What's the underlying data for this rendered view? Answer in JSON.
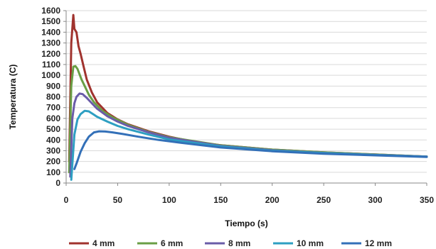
{
  "chart_data": {
    "type": "line",
    "xlabel": "Tiempo (s)",
    "ylabel": "Temperatura (C)",
    "xlim": [
      0,
      350
    ],
    "ylim": [
      0,
      1600
    ],
    "xticks": [
      0,
      50,
      100,
      150,
      200,
      250,
      300,
      350
    ],
    "yticks": [
      0,
      100,
      200,
      300,
      400,
      500,
      600,
      700,
      800,
      900,
      1000,
      1100,
      1200,
      1300,
      1400,
      1500,
      1600
    ],
    "grid": "horizontal",
    "legend_position": "bottom",
    "series": [
      {
        "name": "4 mm",
        "color": "#A0332E",
        "x": [
          3,
          5,
          7,
          8,
          10,
          12,
          14,
          17,
          20,
          25,
          30,
          40,
          50,
          60,
          80,
          100,
          125,
          150,
          200,
          250,
          300,
          350
        ],
        "y": [
          200,
          1300,
          1560,
          1430,
          1400,
          1270,
          1200,
          1080,
          960,
          840,
          750,
          650,
          590,
          545,
          480,
          430,
          380,
          350,
          310,
          285,
          265,
          245
        ]
      },
      {
        "name": "6 mm",
        "color": "#6A9E45",
        "x": [
          3,
          5,
          7,
          9,
          11,
          13,
          15,
          18,
          22,
          27,
          35,
          45,
          60,
          80,
          100,
          150,
          200,
          250,
          300,
          350
        ],
        "y": [
          100,
          900,
          1080,
          1085,
          1060,
          1010,
          960,
          900,
          820,
          750,
          670,
          610,
          540,
          475,
          425,
          350,
          310,
          285,
          265,
          245
        ]
      },
      {
        "name": "8 mm",
        "color": "#6A5CA8",
        "x": [
          4,
          6,
          8,
          10,
          13,
          16,
          20,
          25,
          30,
          40,
          50,
          60,
          80,
          100,
          150,
          200,
          250,
          300,
          350
        ],
        "y": [
          60,
          600,
          740,
          800,
          830,
          825,
          790,
          740,
          690,
          620,
          570,
          530,
          470,
          420,
          345,
          305,
          280,
          262,
          245
        ]
      },
      {
        "name": "10 mm",
        "color": "#2E9FC2",
        "x": [
          5,
          8,
          11,
          14,
          18,
          22,
          26,
          30,
          40,
          50,
          60,
          80,
          100,
          150,
          200,
          250,
          300,
          350
        ],
        "y": [
          30,
          450,
          590,
          640,
          670,
          665,
          640,
          615,
          570,
          530,
          500,
          450,
          405,
          340,
          300,
          278,
          260,
          244
        ]
      },
      {
        "name": "12 mm",
        "color": "#3370B8",
        "x": [
          8,
          10,
          14,
          18,
          22,
          27,
          32,
          38,
          45,
          55,
          70,
          90,
          110,
          150,
          200,
          250,
          300,
          350
        ],
        "y": [
          130,
          180,
          290,
          370,
          430,
          470,
          480,
          478,
          470,
          455,
          430,
          400,
          375,
          330,
          295,
          272,
          257,
          242
        ]
      }
    ]
  }
}
